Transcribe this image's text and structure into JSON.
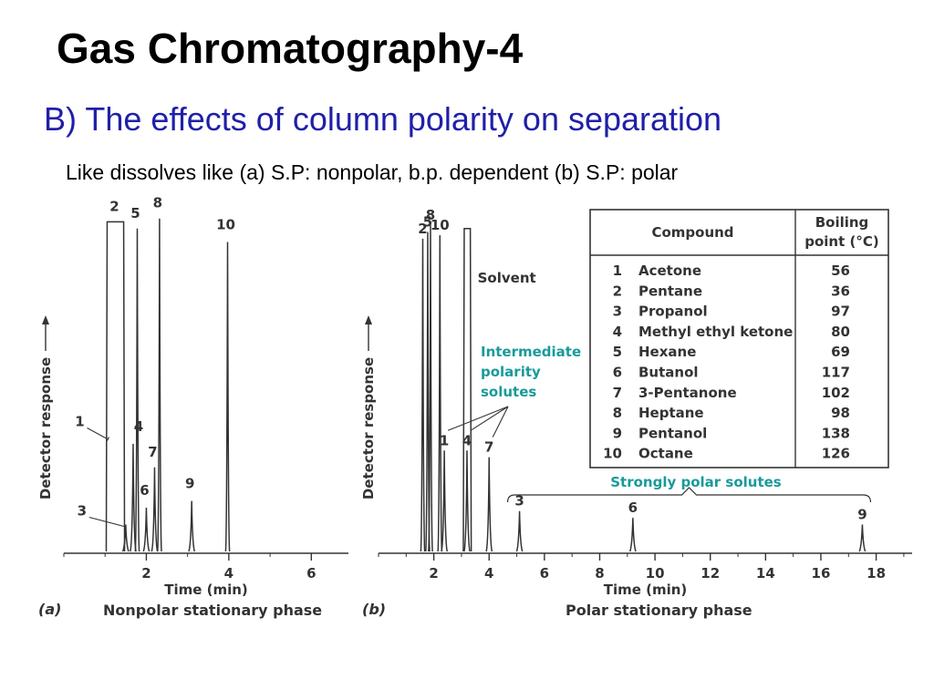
{
  "slide": {
    "title": "Gas Chromatography-4",
    "subtitle": "B) The effects of column polarity on separation",
    "note": "Like dissolves like (a) S.P: nonpolar, b.p. dependent  (b) S.P: polar"
  },
  "colors": {
    "trace": "#333333",
    "title_blue": "#1f1fa8",
    "annotation_teal": "#1a9a9a"
  },
  "chart_data": [
    {
      "type": "line",
      "panel_label": "(a)",
      "caption": "Nonpolar stationary phase",
      "xlabel": "Time (min)",
      "ylabel": "Detector response",
      "xlim": [
        0,
        6.9
      ],
      "ylim": [
        0,
        100
      ],
      "x_ticks": [
        2,
        4,
        6
      ],
      "grid": false,
      "peaks": [
        {
          "label": "2",
          "t_start": 1.05,
          "t_end": 1.45,
          "height": 98,
          "flat": true
        },
        {
          "label": "1",
          "t_start": 1.05,
          "t_end": 1.45,
          "height": 34,
          "flat": true,
          "shoulder": true
        },
        {
          "label": "3",
          "t": 1.5,
          "height": 8
        },
        {
          "label": "4",
          "t": 1.68,
          "height": 32
        },
        {
          "label": "5",
          "t": 1.78,
          "height": 96
        },
        {
          "label": "6",
          "t": 2.0,
          "height": 13
        },
        {
          "label": "7",
          "t": 2.2,
          "height": 25
        },
        {
          "label": "8",
          "t": 2.32,
          "height": 99
        },
        {
          "label": "9",
          "t": 3.1,
          "height": 15
        },
        {
          "label": "10",
          "t": 3.97,
          "height": 92
        }
      ]
    },
    {
      "type": "line",
      "panel_label": "(b)",
      "caption": "Polar stationary phase",
      "xlabel": "Time (min)",
      "ylabel": "Detector response",
      "xlim": [
        0,
        19.3
      ],
      "ylim": [
        0,
        100
      ],
      "x_ticks": [
        2,
        4,
        6,
        8,
        10,
        12,
        14,
        16,
        18
      ],
      "grid": false,
      "annotations": {
        "solvent": "Solvent",
        "intermediate": [
          "Intermediate",
          "polarity",
          "solutes"
        ],
        "strong": "Strongly polar solutes"
      },
      "peaks": [
        {
          "label": "2",
          "t": 1.6,
          "height": 93
        },
        {
          "label": "5",
          "t": 1.78,
          "height": 95
        },
        {
          "label": "8",
          "t": 1.88,
          "height": 97
        },
        {
          "label": "10",
          "t": 2.22,
          "height": 94
        },
        {
          "label": "1",
          "t": 2.38,
          "height": 30
        },
        {
          "label": "Solvent",
          "t_start": 3.1,
          "t_end": 3.32,
          "height": 96,
          "flat": true
        },
        {
          "label": "4",
          "t": 3.2,
          "height": 30
        },
        {
          "label": "7",
          "t": 4.0,
          "height": 28
        },
        {
          "label": "3",
          "t": 5.1,
          "height": 12
        },
        {
          "label": "6",
          "t": 9.2,
          "height": 10
        },
        {
          "label": "9",
          "t": 17.5,
          "height": 8
        }
      ]
    }
  ],
  "table": {
    "headers": [
      "Compound",
      "Boiling point (°C)"
    ],
    "header_lines": [
      [
        "Compound"
      ],
      [
        "Boiling",
        "point (°C)"
      ]
    ],
    "rows": [
      {
        "n": "1",
        "name": "Acetone",
        "bp": "56"
      },
      {
        "n": "2",
        "name": "Pentane",
        "bp": "36"
      },
      {
        "n": "3",
        "name": "Propanol",
        "bp": "97"
      },
      {
        "n": "4",
        "name": "Methyl ethyl ketone",
        "bp": "80"
      },
      {
        "n": "5",
        "name": "Hexane",
        "bp": "69"
      },
      {
        "n": "6",
        "name": "Butanol",
        "bp": "117"
      },
      {
        "n": "7",
        "name": "3-Pentanone",
        "bp": "102"
      },
      {
        "n": "8",
        "name": "Heptane",
        "bp": "98"
      },
      {
        "n": "9",
        "name": "Pentanol",
        "bp": "138"
      },
      {
        "n": "10",
        "name": "Octane",
        "bp": "126"
      }
    ]
  }
}
